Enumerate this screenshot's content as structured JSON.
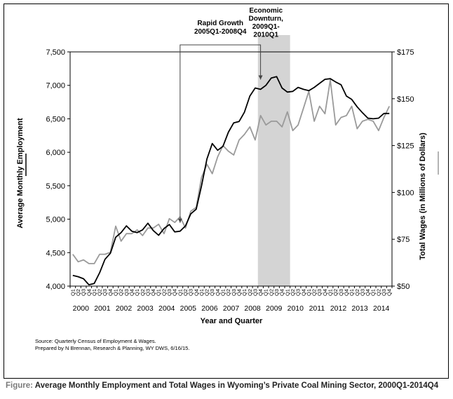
{
  "caption": {
    "lead": "Figure:",
    "text": "Average Monthly Employment and Total Wages in Wyoming’s Private Coal Mining Sector, 2000Q1-2014Q4"
  },
  "source": {
    "line1": "Source: Quarterly Census of Employment & Wages.",
    "line2": "Prepared by N Brennan, Research & Planning, WY DWS, 6/16/15."
  },
  "chart_data": {
    "type": "line",
    "xlabel": "Year and Quarter",
    "ylabel_left": "Average Monthly Employment",
    "ylabel_right": "Total Wages (in Millions of Dollars)",
    "ylim_left": [
      4000,
      7500
    ],
    "ylim_right": [
      50,
      175
    ],
    "yticks_left": [
      "4,000",
      "4,500",
      "5,000",
      "5,500",
      "6,000",
      "6,500",
      "7,000",
      "7,500"
    ],
    "yticks_right": [
      "$50",
      "$75",
      "$100",
      "$125",
      "$150",
      "$175"
    ],
    "quarter_labels": [
      "Q1",
      "Q2",
      "Q3",
      "Q4"
    ],
    "years": [
      "2000",
      "2001",
      "2002",
      "2003",
      "2004",
      "2005",
      "2006",
      "2007",
      "2008",
      "2009",
      "2010",
      "2011",
      "2012",
      "2013",
      "2014"
    ],
    "colors": {
      "employment": "#000000",
      "wages": "#9a9a9a",
      "recession": "#d4d4d4"
    },
    "shaded_region": {
      "from": "2008Q4",
      "to": "2010Q1"
    },
    "annotations": [
      {
        "text_lines": [
          "Rapid Growth",
          "2005Q1-2008Q4"
        ],
        "from": "2005Q1",
        "to": "2008Q4"
      },
      {
        "text_lines": [
          "Economic",
          "Downturn,",
          "2009Q1-",
          "2010Q1"
        ],
        "at": "2009Q1"
      }
    ],
    "series": [
      {
        "name": "Average Monthly Employment",
        "axis": "left",
        "values": [
          4160,
          4140,
          4110,
          4020,
          4040,
          4200,
          4400,
          4490,
          4730,
          4800,
          4900,
          4820,
          4800,
          4840,
          4940,
          4830,
          4760,
          4860,
          4920,
          4810,
          4820,
          4900,
          5080,
          5150,
          5500,
          5900,
          6130,
          6030,
          6090,
          6300,
          6440,
          6460,
          6600,
          6840,
          6960,
          6940,
          7000,
          7110,
          7130,
          6960,
          6900,
          6910,
          6970,
          6940,
          6920,
          6970,
          7030,
          7090,
          7100,
          7050,
          7010,
          6840,
          6790,
          6680,
          6590,
          6510,
          6500,
          6510,
          6580,
          6580
        ]
      },
      {
        "name": "Total Wages (in Millions of Dollars)",
        "axis": "right",
        "values": [
          67,
          63,
          64,
          62,
          62,
          67,
          67,
          68,
          82,
          74,
          78,
          78,
          80,
          77,
          81,
          81,
          83,
          78,
          86,
          84,
          87,
          81,
          90,
          92,
          108,
          115,
          110,
          119,
          125,
          122,
          120,
          128,
          131,
          135,
          128,
          141,
          136,
          138,
          138,
          135,
          143,
          133,
          136,
          145,
          154,
          138,
          146,
          142,
          160,
          136,
          140,
          141,
          146,
          134,
          138,
          139,
          138,
          133,
          140,
          146
        ]
      }
    ]
  }
}
